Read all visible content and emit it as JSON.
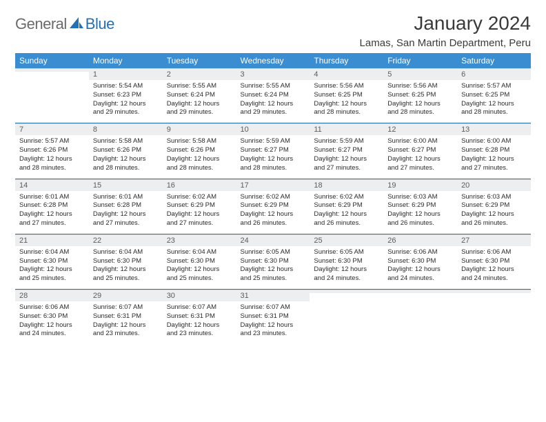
{
  "logo": {
    "general": "General",
    "blue": "Blue"
  },
  "header": {
    "title": "January 2024",
    "location": "Lamas, San Martin Department, Peru"
  },
  "colors": {
    "header_bg": "#3a8dd0",
    "header_text": "#ffffff",
    "daynum_bg": "#eceeef",
    "week_sep": "#2b6fa8",
    "logo_gray": "#6a6a6a",
    "logo_blue": "#2271b6"
  },
  "weekdays": [
    "Sunday",
    "Monday",
    "Tuesday",
    "Wednesday",
    "Thursday",
    "Friday",
    "Saturday"
  ],
  "weeks": [
    {
      "days": [
        {
          "num": "",
          "sunrise": "",
          "sunset": "",
          "daylight": ""
        },
        {
          "num": "1",
          "sunrise": "Sunrise: 5:54 AM",
          "sunset": "Sunset: 6:23 PM",
          "daylight": "Daylight: 12 hours and 29 minutes."
        },
        {
          "num": "2",
          "sunrise": "Sunrise: 5:55 AM",
          "sunset": "Sunset: 6:24 PM",
          "daylight": "Daylight: 12 hours and 29 minutes."
        },
        {
          "num": "3",
          "sunrise": "Sunrise: 5:55 AM",
          "sunset": "Sunset: 6:24 PM",
          "daylight": "Daylight: 12 hours and 29 minutes."
        },
        {
          "num": "4",
          "sunrise": "Sunrise: 5:56 AM",
          "sunset": "Sunset: 6:25 PM",
          "daylight": "Daylight: 12 hours and 28 minutes."
        },
        {
          "num": "5",
          "sunrise": "Sunrise: 5:56 AM",
          "sunset": "Sunset: 6:25 PM",
          "daylight": "Daylight: 12 hours and 28 minutes."
        },
        {
          "num": "6",
          "sunrise": "Sunrise: 5:57 AM",
          "sunset": "Sunset: 6:25 PM",
          "daylight": "Daylight: 12 hours and 28 minutes."
        }
      ]
    },
    {
      "days": [
        {
          "num": "7",
          "sunrise": "Sunrise: 5:57 AM",
          "sunset": "Sunset: 6:26 PM",
          "daylight": "Daylight: 12 hours and 28 minutes."
        },
        {
          "num": "8",
          "sunrise": "Sunrise: 5:58 AM",
          "sunset": "Sunset: 6:26 PM",
          "daylight": "Daylight: 12 hours and 28 minutes."
        },
        {
          "num": "9",
          "sunrise": "Sunrise: 5:58 AM",
          "sunset": "Sunset: 6:26 PM",
          "daylight": "Daylight: 12 hours and 28 minutes."
        },
        {
          "num": "10",
          "sunrise": "Sunrise: 5:59 AM",
          "sunset": "Sunset: 6:27 PM",
          "daylight": "Daylight: 12 hours and 28 minutes."
        },
        {
          "num": "11",
          "sunrise": "Sunrise: 5:59 AM",
          "sunset": "Sunset: 6:27 PM",
          "daylight": "Daylight: 12 hours and 27 minutes."
        },
        {
          "num": "12",
          "sunrise": "Sunrise: 6:00 AM",
          "sunset": "Sunset: 6:27 PM",
          "daylight": "Daylight: 12 hours and 27 minutes."
        },
        {
          "num": "13",
          "sunrise": "Sunrise: 6:00 AM",
          "sunset": "Sunset: 6:28 PM",
          "daylight": "Daylight: 12 hours and 27 minutes."
        }
      ]
    },
    {
      "days": [
        {
          "num": "14",
          "sunrise": "Sunrise: 6:01 AM",
          "sunset": "Sunset: 6:28 PM",
          "daylight": "Daylight: 12 hours and 27 minutes."
        },
        {
          "num": "15",
          "sunrise": "Sunrise: 6:01 AM",
          "sunset": "Sunset: 6:28 PM",
          "daylight": "Daylight: 12 hours and 27 minutes."
        },
        {
          "num": "16",
          "sunrise": "Sunrise: 6:02 AM",
          "sunset": "Sunset: 6:29 PM",
          "daylight": "Daylight: 12 hours and 27 minutes."
        },
        {
          "num": "17",
          "sunrise": "Sunrise: 6:02 AM",
          "sunset": "Sunset: 6:29 PM",
          "daylight": "Daylight: 12 hours and 26 minutes."
        },
        {
          "num": "18",
          "sunrise": "Sunrise: 6:02 AM",
          "sunset": "Sunset: 6:29 PM",
          "daylight": "Daylight: 12 hours and 26 minutes."
        },
        {
          "num": "19",
          "sunrise": "Sunrise: 6:03 AM",
          "sunset": "Sunset: 6:29 PM",
          "daylight": "Daylight: 12 hours and 26 minutes."
        },
        {
          "num": "20",
          "sunrise": "Sunrise: 6:03 AM",
          "sunset": "Sunset: 6:29 PM",
          "daylight": "Daylight: 12 hours and 26 minutes."
        }
      ]
    },
    {
      "days": [
        {
          "num": "21",
          "sunrise": "Sunrise: 6:04 AM",
          "sunset": "Sunset: 6:30 PM",
          "daylight": "Daylight: 12 hours and 25 minutes."
        },
        {
          "num": "22",
          "sunrise": "Sunrise: 6:04 AM",
          "sunset": "Sunset: 6:30 PM",
          "daylight": "Daylight: 12 hours and 25 minutes."
        },
        {
          "num": "23",
          "sunrise": "Sunrise: 6:04 AM",
          "sunset": "Sunset: 6:30 PM",
          "daylight": "Daylight: 12 hours and 25 minutes."
        },
        {
          "num": "24",
          "sunrise": "Sunrise: 6:05 AM",
          "sunset": "Sunset: 6:30 PM",
          "daylight": "Daylight: 12 hours and 25 minutes."
        },
        {
          "num": "25",
          "sunrise": "Sunrise: 6:05 AM",
          "sunset": "Sunset: 6:30 PM",
          "daylight": "Daylight: 12 hours and 24 minutes."
        },
        {
          "num": "26",
          "sunrise": "Sunrise: 6:06 AM",
          "sunset": "Sunset: 6:30 PM",
          "daylight": "Daylight: 12 hours and 24 minutes."
        },
        {
          "num": "27",
          "sunrise": "Sunrise: 6:06 AM",
          "sunset": "Sunset: 6:30 PM",
          "daylight": "Daylight: 12 hours and 24 minutes."
        }
      ]
    },
    {
      "days": [
        {
          "num": "28",
          "sunrise": "Sunrise: 6:06 AM",
          "sunset": "Sunset: 6:30 PM",
          "daylight": "Daylight: 12 hours and 24 minutes."
        },
        {
          "num": "29",
          "sunrise": "Sunrise: 6:07 AM",
          "sunset": "Sunset: 6:31 PM",
          "daylight": "Daylight: 12 hours and 23 minutes."
        },
        {
          "num": "30",
          "sunrise": "Sunrise: 6:07 AM",
          "sunset": "Sunset: 6:31 PM",
          "daylight": "Daylight: 12 hours and 23 minutes."
        },
        {
          "num": "31",
          "sunrise": "Sunrise: 6:07 AM",
          "sunset": "Sunset: 6:31 PM",
          "daylight": "Daylight: 12 hours and 23 minutes."
        },
        {
          "num": "",
          "sunrise": "",
          "sunset": "",
          "daylight": ""
        },
        {
          "num": "",
          "sunrise": "",
          "sunset": "",
          "daylight": ""
        },
        {
          "num": "",
          "sunrise": "",
          "sunset": "",
          "daylight": ""
        }
      ]
    }
  ]
}
